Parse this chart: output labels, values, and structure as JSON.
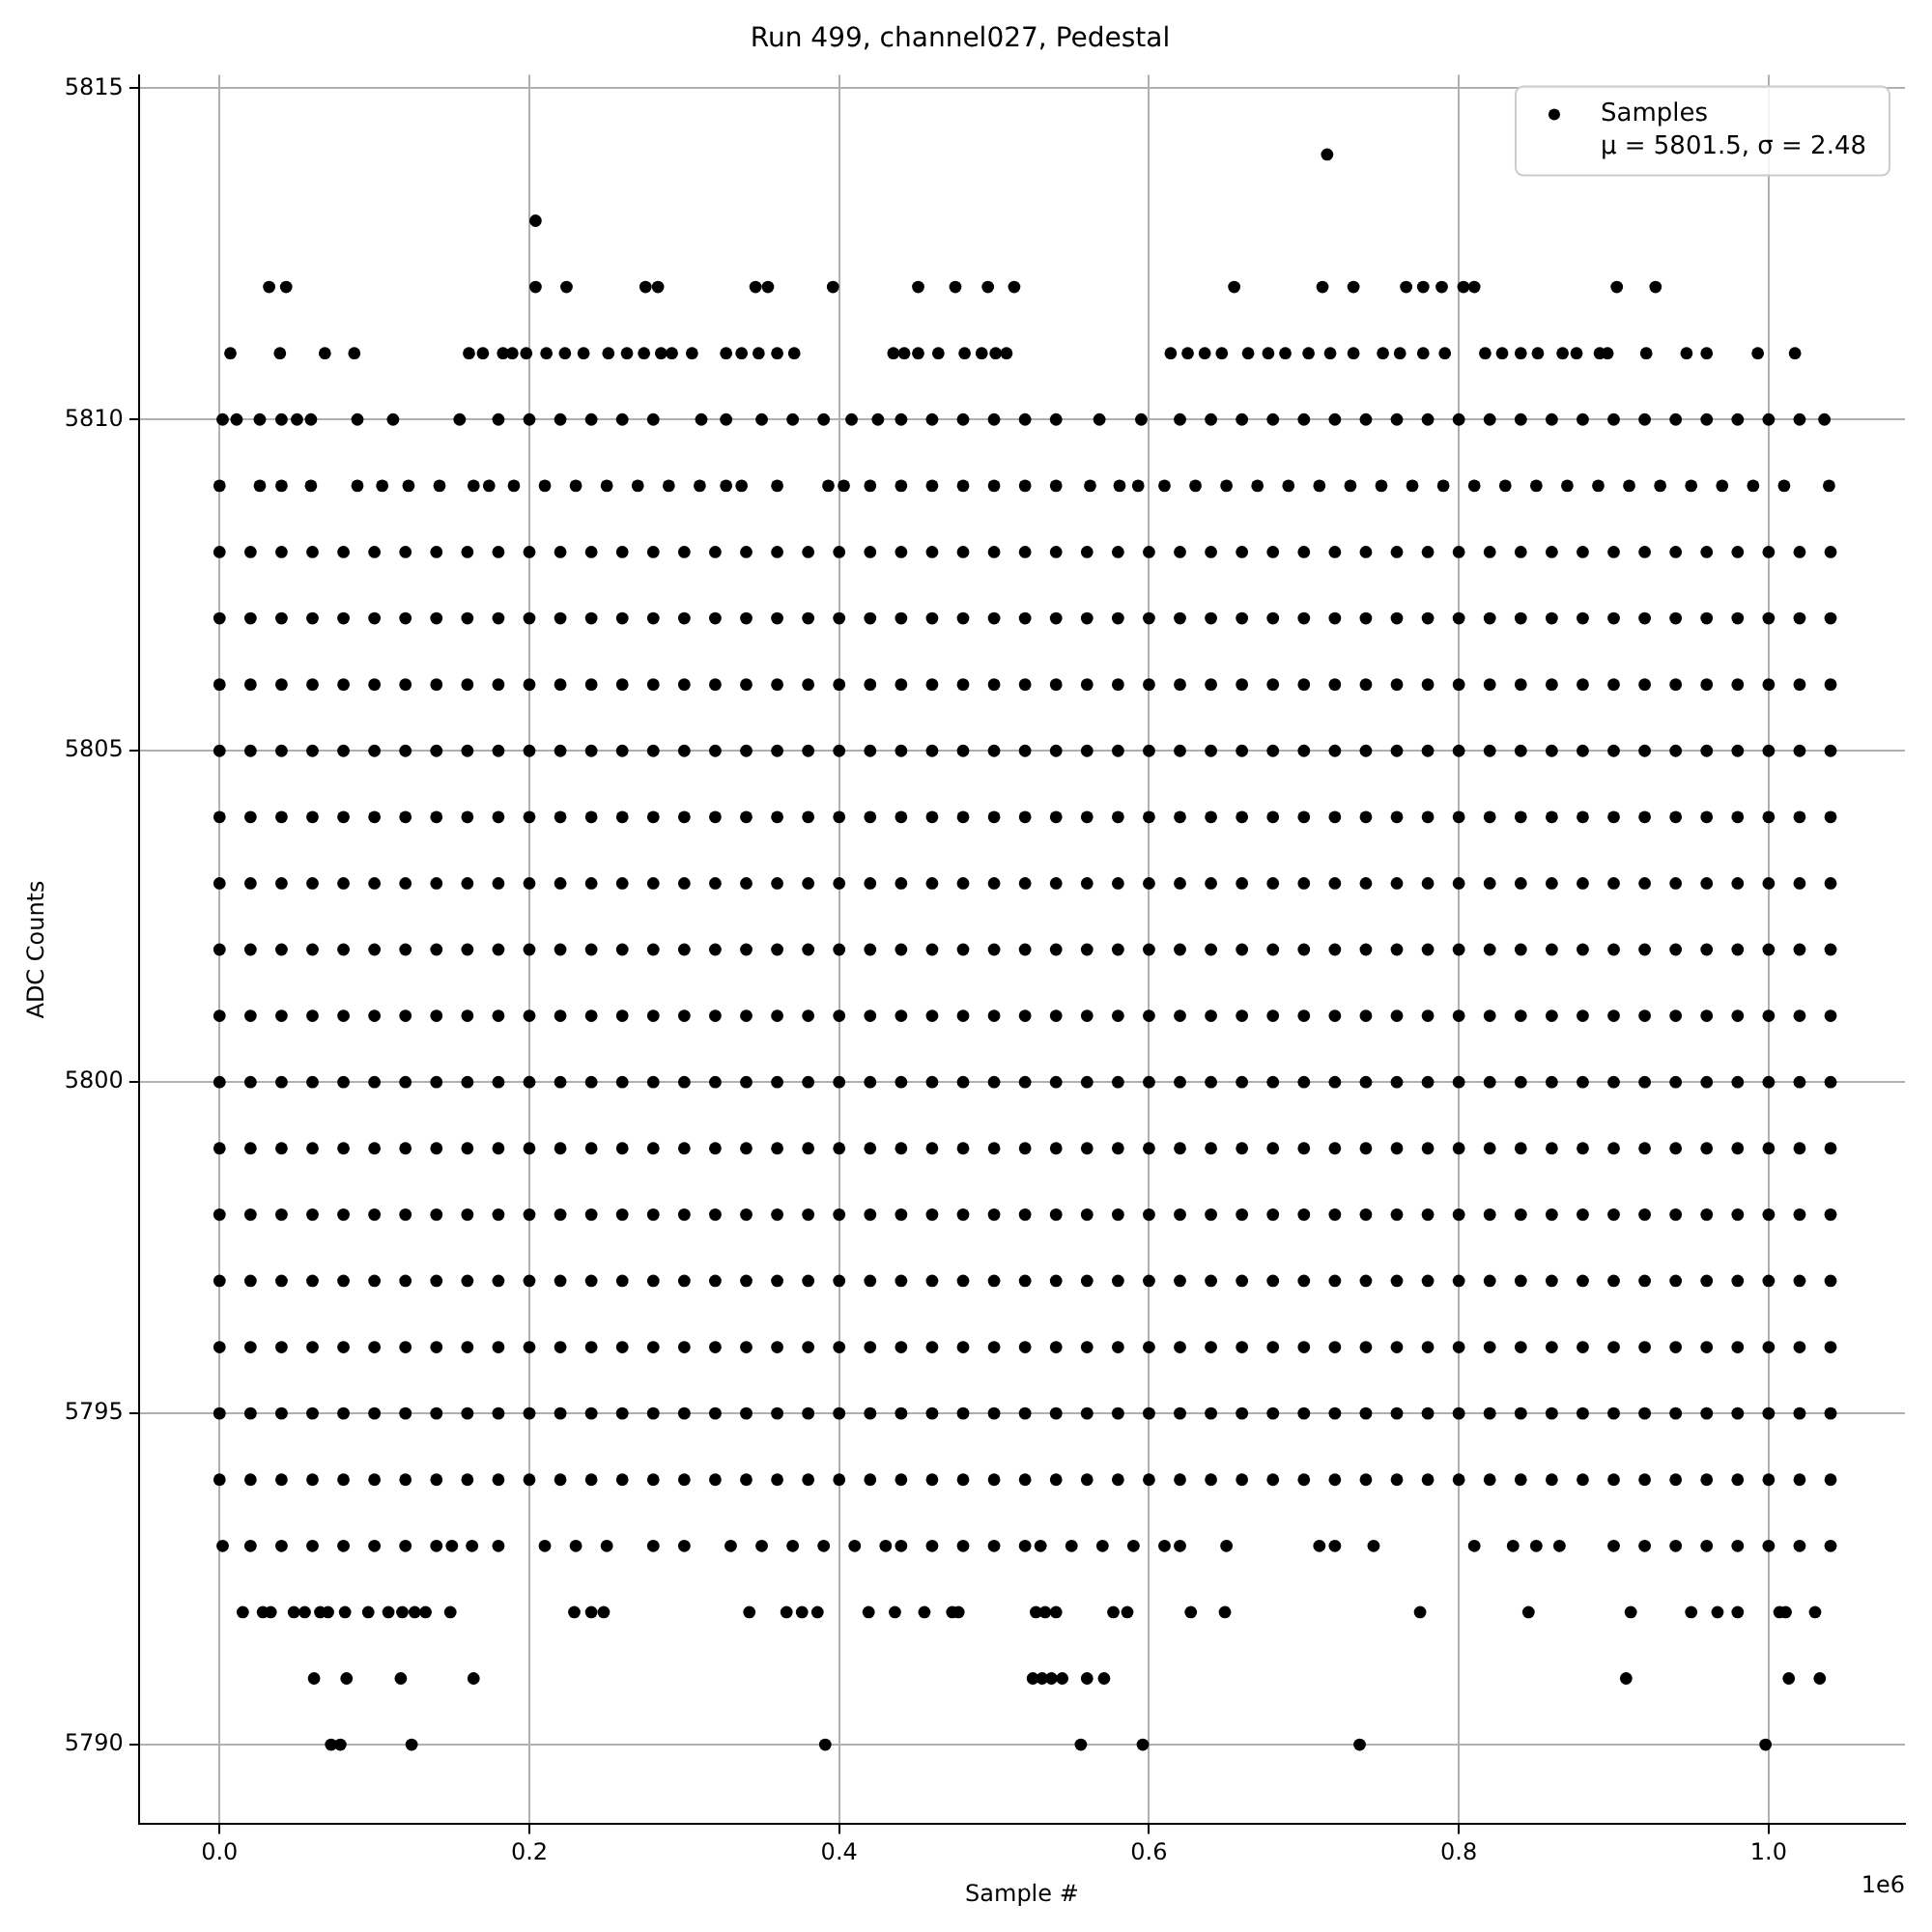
{
  "chart_data": {
    "type": "scatter",
    "title": "Run 499, channel027, Pedestal",
    "xlabel": "Sample #",
    "ylabel": "ADC Counts",
    "annotations": [
      "1e6"
    ],
    "xlim": [
      -0.052,
      1.088
    ],
    "ylim": [
      5788.8,
      5815.2
    ],
    "xticks": [
      {
        "value": 0,
        "label": "0.0"
      },
      {
        "value": 0.2,
        "label": "0.2"
      },
      {
        "value": 0.4,
        "label": "0.4"
      },
      {
        "value": 0.6,
        "label": "0.6"
      },
      {
        "value": 0.8,
        "label": "0.8"
      },
      {
        "value": 1,
        "label": "1.0"
      }
    ],
    "yticks": [
      5790,
      5795,
      5800,
      5805,
      5810,
      5815
    ],
    "grid": true,
    "legend": "top right",
    "marker": "circle",
    "x": [
      0,
      0.02,
      0.04,
      0.06,
      0.08,
      0.1,
      0.12,
      0.14,
      0.16,
      0.18,
      0.2,
      0.22,
      0.24,
      0.26,
      0.28,
      0.3,
      0.32,
      0.34,
      0.36,
      0.38,
      0.4,
      0.42,
      0.44,
      0.46,
      0.48,
      0.5,
      0.52,
      0.54,
      0.56,
      0.58,
      0.6,
      0.62,
      0.64,
      0.66,
      0.68,
      0.7,
      0.72,
      0.74,
      0.76,
      0.78,
      0.8,
      0.82,
      0.84,
      0.86,
      0.88,
      0.9,
      0.92,
      0.94,
      0.96,
      0.98,
      1,
      1.02,
      1.04
    ],
    "series": [
      {
        "name": "Samples\nμ = 5801.5, σ = 2.48",
        "color": "#000000",
        "values": [
          5794,
          5794,
          5794,
          5794,
          5794,
          5794,
          5794,
          5794,
          5794,
          5794,
          5794,
          5794,
          5794,
          5794,
          5794,
          5794,
          5794,
          5794,
          5794,
          5794,
          5794,
          5794,
          5794,
          5794,
          5794,
          5794,
          5794,
          5794,
          5794,
          5794,
          5794,
          5794,
          5794,
          5794,
          5794,
          5794,
          5794,
          5794,
          5794,
          5794,
          5794,
          5794,
          5794,
          5794,
          5794,
          5794,
          5794,
          5794,
          5794,
          5794,
          5794,
          5794,
          5794
        ]
      },
      {
        "color": "#000000",
        "values": [
          5795,
          5795,
          5795,
          5795,
          5795,
          5795,
          5795,
          5795,
          5795,
          5795,
          5795,
          5795,
          5795,
          5795,
          5795,
          5795,
          5795,
          5795,
          5795,
          5795,
          5795,
          5795,
          5795,
          5795,
          5795,
          5795,
          5795,
          5795,
          5795,
          5795,
          5795,
          5795,
          5795,
          5795,
          5795,
          5795,
          5795,
          5795,
          5795,
          5795,
          5795,
          5795,
          5795,
          5795,
          5795,
          5795,
          5795,
          5795,
          5795,
          5795,
          5795,
          5795,
          5795
        ]
      },
      {
        "color": "#000000",
        "values": [
          5796,
          5796,
          5796,
          5796,
          5796,
          5796,
          5796,
          5796,
          5796,
          5796,
          5796,
          5796,
          5796,
          5796,
          5796,
          5796,
          5796,
          5796,
          5796,
          5796,
          5796,
          5796,
          5796,
          5796,
          5796,
          5796,
          5796,
          5796,
          5796,
          5796,
          5796,
          5796,
          5796,
          5796,
          5796,
          5796,
          5796,
          5796,
          5796,
          5796,
          5796,
          5796,
          5796,
          5796,
          5796,
          5796,
          5796,
          5796,
          5796,
          5796,
          5796,
          5796,
          5796
        ]
      },
      {
        "color": "#000000",
        "values": [
          5797,
          5797,
          5797,
          5797,
          5797,
          5797,
          5797,
          5797,
          5797,
          5797,
          5797,
          5797,
          5797,
          5797,
          5797,
          5797,
          5797,
          5797,
          5797,
          5797,
          5797,
          5797,
          5797,
          5797,
          5797,
          5797,
          5797,
          5797,
          5797,
          5797,
          5797,
          5797,
          5797,
          5797,
          5797,
          5797,
          5797,
          5797,
          5797,
          5797,
          5797,
          5797,
          5797,
          5797,
          5797,
          5797,
          5797,
          5797,
          5797,
          5797,
          5797,
          5797,
          5797
        ]
      },
      {
        "color": "#000000",
        "values": [
          5798,
          5798,
          5798,
          5798,
          5798,
          5798,
          5798,
          5798,
          5798,
          5798,
          5798,
          5798,
          5798,
          5798,
          5798,
          5798,
          5798,
          5798,
          5798,
          5798,
          5798,
          5798,
          5798,
          5798,
          5798,
          5798,
          5798,
          5798,
          5798,
          5798,
          5798,
          5798,
          5798,
          5798,
          5798,
          5798,
          5798,
          5798,
          5798,
          5798,
          5798,
          5798,
          5798,
          5798,
          5798,
          5798,
          5798,
          5798,
          5798,
          5798,
          5798,
          5798,
          5798
        ]
      },
      {
        "color": "#000000",
        "values": [
          5799,
          5799,
          5799,
          5799,
          5799,
          5799,
          5799,
          5799,
          5799,
          5799,
          5799,
          5799,
          5799,
          5799,
          5799,
          5799,
          5799,
          5799,
          5799,
          5799,
          5799,
          5799,
          5799,
          5799,
          5799,
          5799,
          5799,
          5799,
          5799,
          5799,
          5799,
          5799,
          5799,
          5799,
          5799,
          5799,
          5799,
          5799,
          5799,
          5799,
          5799,
          5799,
          5799,
          5799,
          5799,
          5799,
          5799,
          5799,
          5799,
          5799,
          5799,
          5799,
          5799
        ]
      },
      {
        "color": "#000000",
        "values": [
          5800,
          5800,
          5800,
          5800,
          5800,
          5800,
          5800,
          5800,
          5800,
          5800,
          5800,
          5800,
          5800,
          5800,
          5800,
          5800,
          5800,
          5800,
          5800,
          5800,
          5800,
          5800,
          5800,
          5800,
          5800,
          5800,
          5800,
          5800,
          5800,
          5800,
          5800,
          5800,
          5800,
          5800,
          5800,
          5800,
          5800,
          5800,
          5800,
          5800,
          5800,
          5800,
          5800,
          5800,
          5800,
          5800,
          5800,
          5800,
          5800,
          5800,
          5800,
          5800,
          5800
        ]
      },
      {
        "color": "#000000",
        "values": [
          5801,
          5801,
          5801,
          5801,
          5801,
          5801,
          5801,
          5801,
          5801,
          5801,
          5801,
          5801,
          5801,
          5801,
          5801,
          5801,
          5801,
          5801,
          5801,
          5801,
          5801,
          5801,
          5801,
          5801,
          5801,
          5801,
          5801,
          5801,
          5801,
          5801,
          5801,
          5801,
          5801,
          5801,
          5801,
          5801,
          5801,
          5801,
          5801,
          5801,
          5801,
          5801,
          5801,
          5801,
          5801,
          5801,
          5801,
          5801,
          5801,
          5801,
          5801,
          5801,
          5801
        ]
      },
      {
        "color": "#000000",
        "values": [
          5802,
          5802,
          5802,
          5802,
          5802,
          5802,
          5802,
          5802,
          5802,
          5802,
          5802,
          5802,
          5802,
          5802,
          5802,
          5802,
          5802,
          5802,
          5802,
          5802,
          5802,
          5802,
          5802,
          5802,
          5802,
          5802,
          5802,
          5802,
          5802,
          5802,
          5802,
          5802,
          5802,
          5802,
          5802,
          5802,
          5802,
          5802,
          5802,
          5802,
          5802,
          5802,
          5802,
          5802,
          5802,
          5802,
          5802,
          5802,
          5802,
          5802,
          5802,
          5802,
          5802
        ]
      },
      {
        "color": "#000000",
        "values": [
          5803,
          5803,
          5803,
          5803,
          5803,
          5803,
          5803,
          5803,
          5803,
          5803,
          5803,
          5803,
          5803,
          5803,
          5803,
          5803,
          5803,
          5803,
          5803,
          5803,
          5803,
          5803,
          5803,
          5803,
          5803,
          5803,
          5803,
          5803,
          5803,
          5803,
          5803,
          5803,
          5803,
          5803,
          5803,
          5803,
          5803,
          5803,
          5803,
          5803,
          5803,
          5803,
          5803,
          5803,
          5803,
          5803,
          5803,
          5803,
          5803,
          5803,
          5803,
          5803,
          5803
        ]
      },
      {
        "color": "#000000",
        "values": [
          5804,
          5804,
          5804,
          5804,
          5804,
          5804,
          5804,
          5804,
          5804,
          5804,
          5804,
          5804,
          5804,
          5804,
          5804,
          5804,
          5804,
          5804,
          5804,
          5804,
          5804,
          5804,
          5804,
          5804,
          5804,
          5804,
          5804,
          5804,
          5804,
          5804,
          5804,
          5804,
          5804,
          5804,
          5804,
          5804,
          5804,
          5804,
          5804,
          5804,
          5804,
          5804,
          5804,
          5804,
          5804,
          5804,
          5804,
          5804,
          5804,
          5804,
          5804,
          5804,
          5804
        ]
      },
      {
        "color": "#000000",
        "values": [
          5805,
          5805,
          5805,
          5805,
          5805,
          5805,
          5805,
          5805,
          5805,
          5805,
          5805,
          5805,
          5805,
          5805,
          5805,
          5805,
          5805,
          5805,
          5805,
          5805,
          5805,
          5805,
          5805,
          5805,
          5805,
          5805,
          5805,
          5805,
          5805,
          5805,
          5805,
          5805,
          5805,
          5805,
          5805,
          5805,
          5805,
          5805,
          5805,
          5805,
          5805,
          5805,
          5805,
          5805,
          5805,
          5805,
          5805,
          5805,
          5805,
          5805,
          5805,
          5805,
          5805
        ]
      },
      {
        "color": "#000000",
        "values": [
          5806,
          5806,
          5806,
          5806,
          5806,
          5806,
          5806,
          5806,
          5806,
          5806,
          5806,
          5806,
          5806,
          5806,
          5806,
          5806,
          5806,
          5806,
          5806,
          5806,
          5806,
          5806,
          5806,
          5806,
          5806,
          5806,
          5806,
          5806,
          5806,
          5806,
          5806,
          5806,
          5806,
          5806,
          5806,
          5806,
          5806,
          5806,
          5806,
          5806,
          5806,
          5806,
          5806,
          5806,
          5806,
          5806,
          5806,
          5806,
          5806,
          5806,
          5806,
          5806,
          5806
        ]
      },
      {
        "color": "#000000",
        "values": [
          5807,
          5807,
          5807,
          5807,
          5807,
          5807,
          5807,
          5807,
          5807,
          5807,
          5807,
          5807,
          5807,
          5807,
          5807,
          5807,
          5807,
          5807,
          5807,
          5807,
          5807,
          5807,
          5807,
          5807,
          5807,
          5807,
          5807,
          5807,
          5807,
          5807,
          5807,
          5807,
          5807,
          5807,
          5807,
          5807,
          5807,
          5807,
          5807,
          5807,
          5807,
          5807,
          5807,
          5807,
          5807,
          5807,
          5807,
          5807,
          5807,
          5807,
          5807,
          5807,
          5807
        ]
      },
      {
        "color": "#000000",
        "values": [
          5808,
          5808,
          5808,
          5808,
          5808,
          5808,
          5808,
          5808,
          5808,
          5808,
          5808,
          5808,
          5808,
          5808,
          5808,
          5808,
          5808,
          5808,
          5808,
          5808,
          5808,
          5808,
          5808,
          5808,
          5808,
          5808,
          5808,
          5808,
          5808,
          5808,
          5808,
          5808,
          5808,
          5808,
          5808,
          5808,
          5808,
          5808,
          5808,
          5808,
          5808,
          5808,
          5808,
          5808,
          5808,
          5808,
          5808,
          5808,
          5808,
          5808,
          5808,
          5808,
          5808
        ]
      },
      {
        "color": "#000000",
        "x": [
          0,
          0.026,
          0.04,
          0.059,
          0.089,
          0.105,
          0.122,
          0.142,
          0.164,
          0.174,
          0.19,
          0.21,
          0.23,
          0.25,
          0.27,
          0.29,
          0.31,
          0.327,
          0.337,
          0.36,
          0.393,
          0.403,
          0.42,
          0.44,
          0.46,
          0.48,
          0.5,
          0.52,
          0.54,
          0.562,
          0.581,
          0.593,
          0.61,
          0.63,
          0.65,
          0.67,
          0.69,
          0.71,
          0.73,
          0.75,
          0.77,
          0.79,
          0.81,
          0.83,
          0.85,
          0.87,
          0.89,
          0.91,
          0.93,
          0.95,
          0.97,
          0.99,
          1.01,
          1.039
        ],
        "values": [
          5809,
          5809,
          5809,
          5809,
          5809,
          5809,
          5809,
          5809,
          5809,
          5809,
          5809,
          5809,
          5809,
          5809,
          5809,
          5809,
          5809,
          5809,
          5809,
          5809,
          5809,
          5809,
          5809,
          5809,
          5809,
          5809,
          5809,
          5809,
          5809,
          5809,
          5809,
          5809,
          5809,
          5809,
          5809,
          5809,
          5809,
          5809,
          5809,
          5809,
          5809,
          5809,
          5809,
          5809,
          5809,
          5809,
          5809,
          5809,
          5809,
          5809,
          5809,
          5809,
          5809,
          5809
        ]
      },
      {
        "color": "#000000",
        "x": [
          0.002,
          0.011,
          0.026,
          0.04,
          0.05,
          0.059,
          0.089,
          0.112,
          0.155,
          0.18,
          0.2,
          0.22,
          0.24,
          0.26,
          0.28,
          0.311,
          0.327,
          0.35,
          0.37,
          0.39,
          0.408,
          0.425,
          0.44,
          0.46,
          0.48,
          0.5,
          0.52,
          0.54,
          0.568,
          0.595,
          0.62,
          0.64,
          0.66,
          0.68,
          0.7,
          0.72,
          0.74,
          0.76,
          0.78,
          0.8,
          0.82,
          0.84,
          0.86,
          0.88,
          0.9,
          0.92,
          0.94,
          0.96,
          0.98,
          1,
          1.02,
          1.036
        ],
        "values": [
          5810,
          5810,
          5810,
          5810,
          5810,
          5810,
          5810,
          5810,
          5810,
          5810,
          5810,
          5810,
          5810,
          5810,
          5810,
          5810,
          5810,
          5810,
          5810,
          5810,
          5810,
          5810,
          5810,
          5810,
          5810,
          5810,
          5810,
          5810,
          5810,
          5810,
          5810,
          5810,
          5810,
          5810,
          5810,
          5810,
          5810,
          5810,
          5810,
          5810,
          5810,
          5810,
          5810,
          5810,
          5810,
          5810,
          5810,
          5810,
          5810,
          5810,
          5810,
          5810
        ]
      },
      {
        "color": "#000000",
        "x": [
          0.007,
          0.039,
          0.068,
          0.087,
          0.161,
          0.17,
          0.183,
          0.189,
          0.198,
          0.211,
          0.223,
          0.235,
          0.251,
          0.263,
          0.274,
          0.285,
          0.292,
          0.305,
          0.327,
          0.337,
          0.348,
          0.36,
          0.371,
          0.435,
          0.442,
          0.451,
          0.464,
          0.481,
          0.492,
          0.501,
          0.508,
          0.614,
          0.625,
          0.636,
          0.647,
          0.664,
          0.677,
          0.688,
          0.703,
          0.717,
          0.732,
          0.751,
          0.762,
          0.777,
          0.791,
          0.817,
          0.828,
          0.84,
          0.851,
          0.867,
          0.876,
          0.891,
          0.896,
          0.921,
          0.947,
          0.96,
          0.993,
          1.017
        ],
        "values": [
          5811,
          5811,
          5811,
          5811,
          5811,
          5811,
          5811,
          5811,
          5811,
          5811,
          5811,
          5811,
          5811,
          5811,
          5811,
          5811,
          5811,
          5811,
          5811,
          5811,
          5811,
          5811,
          5811,
          5811,
          5811,
          5811,
          5811,
          5811,
          5811,
          5811,
          5811,
          5811,
          5811,
          5811,
          5811,
          5811,
          5811,
          5811,
          5811,
          5811,
          5811,
          5811,
          5811,
          5811,
          5811,
          5811,
          5811,
          5811,
          5811,
          5811,
          5811,
          5811,
          5811,
          5811,
          5811,
          5811,
          5811,
          5811
        ]
      },
      {
        "color": "#000000",
        "x": [
          0.032,
          0.043,
          0.204,
          0.224,
          0.275,
          0.283,
          0.346,
          0.354,
          0.396,
          0.451,
          0.475,
          0.496,
          0.513,
          0.655,
          0.712,
          0.732,
          0.766,
          0.777,
          0.789,
          0.803,
          0.81,
          0.902,
          0.927
        ],
        "values": [
          5812,
          5812,
          5812,
          5812,
          5812,
          5812,
          5812,
          5812,
          5812,
          5812,
          5812,
          5812,
          5812,
          5812,
          5812,
          5812,
          5812,
          5812,
          5812,
          5812,
          5812,
          5812,
          5812
        ]
      },
      {
        "color": "#000000",
        "x": [
          0.204,
          0.715
        ],
        "values": [
          5813,
          5814
        ]
      },
      {
        "color": "#000000",
        "x": [
          0.002,
          0.02,
          0.04,
          0.06,
          0.08,
          0.1,
          0.12,
          0.14,
          0.15,
          0.163,
          0.18,
          0.21,
          0.23,
          0.25,
          0.28,
          0.3,
          0.33,
          0.35,
          0.37,
          0.39,
          0.41,
          0.43,
          0.44,
          0.46,
          0.48,
          0.5,
          0.52,
          0.53,
          0.55,
          0.57,
          0.59,
          0.61,
          0.62,
          0.65,
          0.71,
          0.72,
          0.745,
          0.81,
          0.835,
          0.85,
          0.865,
          0.9,
          0.92,
          0.94,
          0.96,
          0.98,
          1,
          1.02,
          1.04
        ],
        "values": [
          5793,
          5793,
          5793,
          5793,
          5793,
          5793,
          5793,
          5793,
          5793,
          5793,
          5793,
          5793,
          5793,
          5793,
          5793,
          5793,
          5793,
          5793,
          5793,
          5793,
          5793,
          5793,
          5793,
          5793,
          5793,
          5793,
          5793,
          5793,
          5793,
          5793,
          5793,
          5793,
          5793,
          5793,
          5793,
          5793,
          5793,
          5793,
          5793,
          5793,
          5793,
          5793,
          5793,
          5793,
          5793,
          5793,
          5793,
          5793,
          5793
        ]
      },
      {
        "color": "#000000",
        "x": [
          0.015,
          0.028,
          0.033,
          0.048,
          0.055,
          0.065,
          0.07,
          0.081,
          0.096,
          0.109,
          0.118,
          0.126,
          0.133,
          0.149,
          0.229,
          0.24,
          0.248,
          0.342,
          0.366,
          0.376,
          0.386,
          0.419,
          0.436,
          0.455,
          0.473,
          0.477,
          0.527,
          0.533,
          0.54,
          0.577,
          0.586,
          0.627,
          0.649,
          0.775,
          0.845,
          0.911,
          0.95,
          0.967,
          0.98,
          1.007,
          1.011,
          1.03
        ],
        "values": [
          5792,
          5792,
          5792,
          5792,
          5792,
          5792,
          5792,
          5792,
          5792,
          5792,
          5792,
          5792,
          5792,
          5792,
          5792,
          5792,
          5792,
          5792,
          5792,
          5792,
          5792,
          5792,
          5792,
          5792,
          5792,
          5792,
          5792,
          5792,
          5792,
          5792,
          5792,
          5792,
          5792,
          5792,
          5792,
          5792,
          5792,
          5792,
          5792,
          5792,
          5792,
          5792
        ]
      },
      {
        "color": "#000000",
        "x": [
          0.061,
          0.082,
          0.117,
          0.164,
          0.525,
          0.531,
          0.537,
          0.544,
          0.56,
          0.571,
          0.908,
          1.013,
          1.033
        ],
        "values": [
          5791,
          5791,
          5791,
          5791,
          5791,
          5791,
          5791,
          5791,
          5791,
          5791,
          5791,
          5791,
          5791
        ]
      },
      {
        "color": "#000000",
        "x": [
          0.072,
          0.078,
          0.124,
          0.391,
          0.556,
          0.596,
          0.736,
          0.998
        ],
        "values": [
          5790,
          5790,
          5790,
          5790,
          5790,
          5790,
          5790,
          5790
        ]
      }
    ]
  }
}
